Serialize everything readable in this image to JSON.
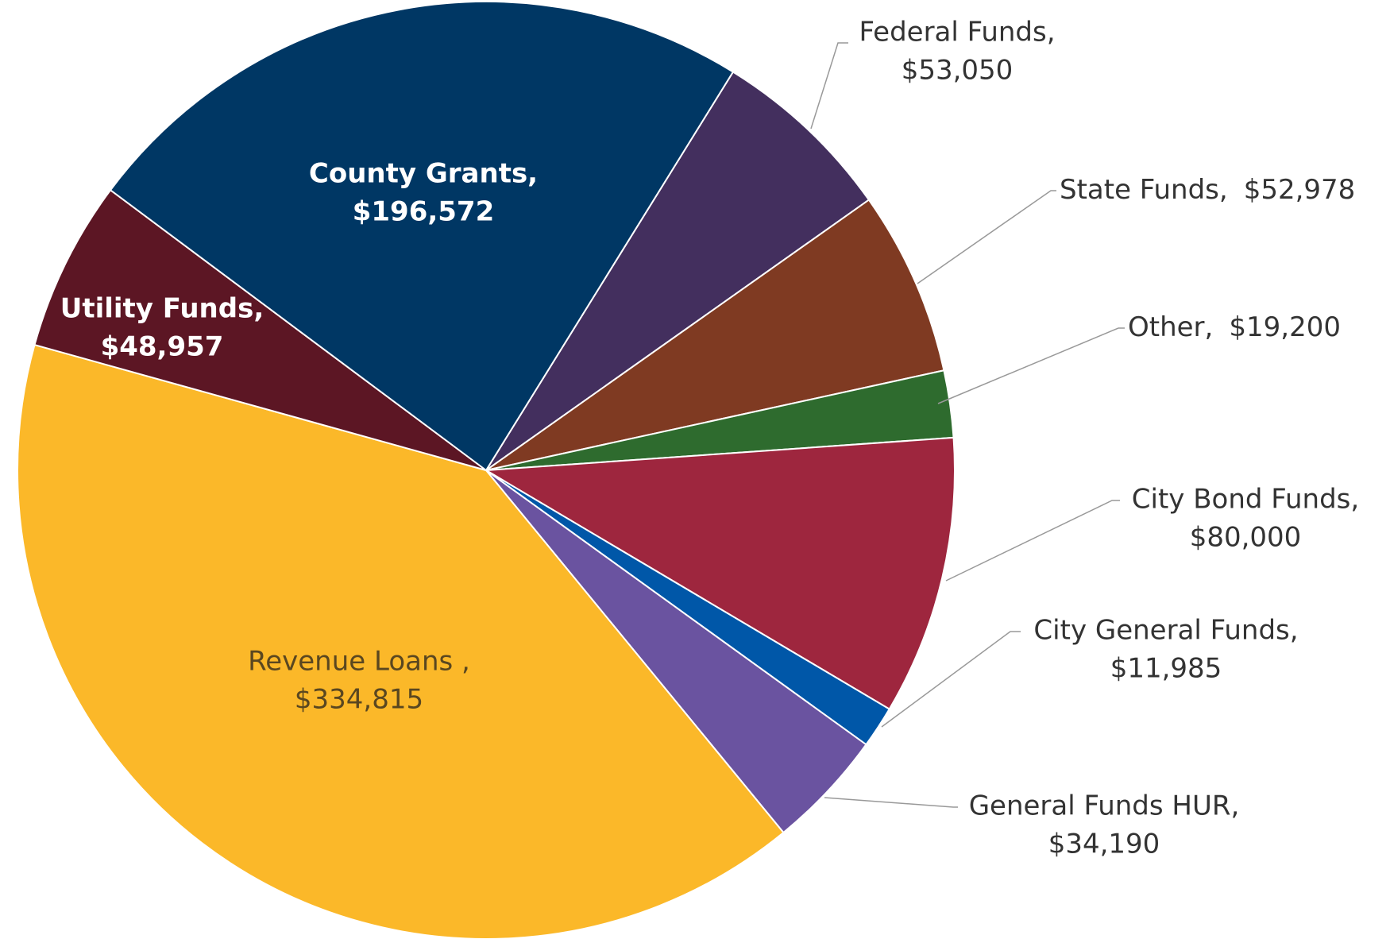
{
  "chart_data": {
    "type": "pie",
    "categories": [
      "Federal Funds,",
      "State Funds,",
      "Other,",
      "City Bond Funds,",
      "City General Funds,",
      "General Funds HUR,",
      "Revenue Loans ,",
      "Utility Funds,",
      "County Grants,"
    ],
    "values": [
      53050,
      52978,
      19200,
      80000,
      11985,
      34190,
      334815,
      48957,
      196572
    ],
    "value_labels": [
      "$53,050",
      "$52,978",
      "$19,200",
      "$80,000",
      "$11,985",
      "$34,190",
      "$334,815",
      "$48,957",
      "$196,572"
    ],
    "colors": [
      "#432f5e",
      "#7f3a22",
      "#2e6b2e",
      "#9e263e",
      "#0057a8",
      "#6a53a0",
      "#fbb829",
      "#5c1624",
      "#003764"
    ]
  }
}
